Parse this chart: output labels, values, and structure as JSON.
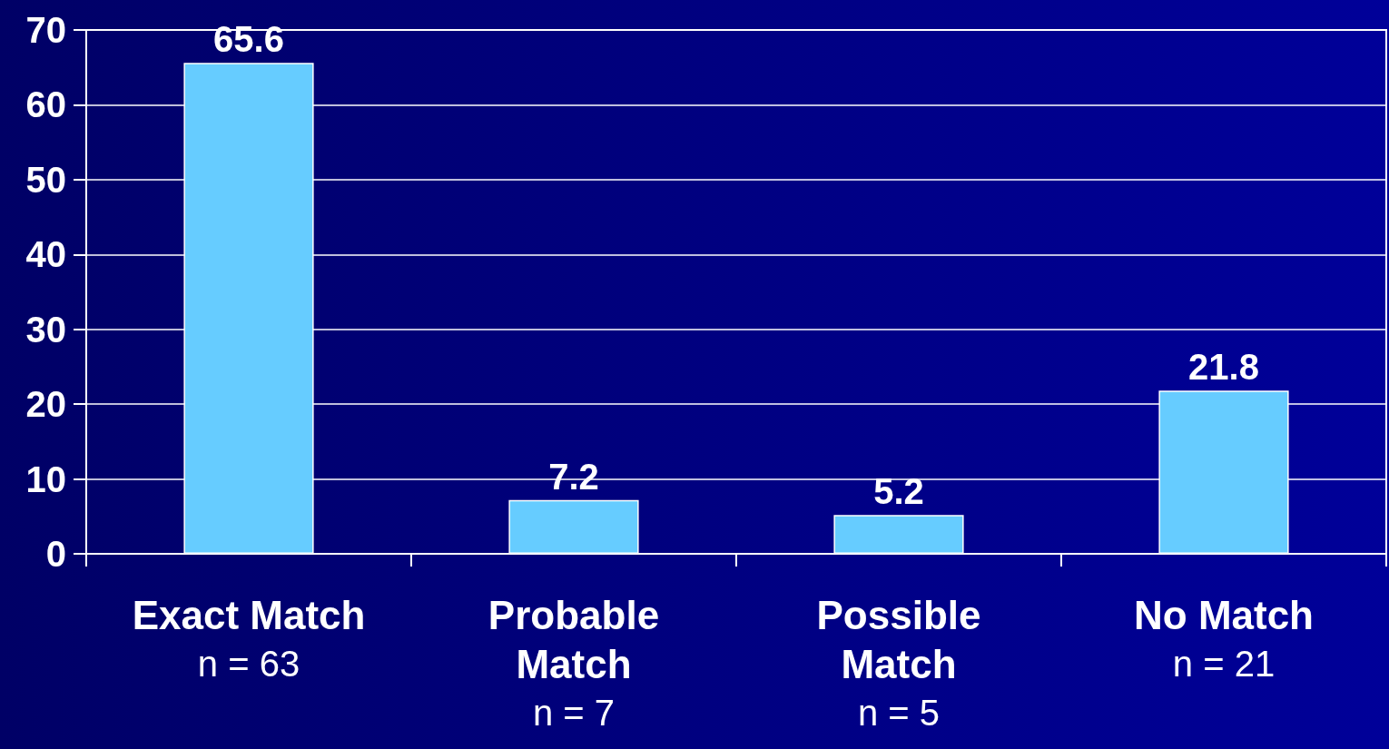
{
  "chart_data": {
    "type": "bar",
    "categories": [
      "Exact Match\nn = 63",
      "Probable\nMatch\nn = 7",
      "Possible\nMatch\nn = 5",
      "No Match\nn = 21"
    ],
    "values": [
      65.6,
      7.2,
      5.2,
      21.8
    ],
    "color": "#66ccff",
    "ylim": [
      0,
      70
    ],
    "yticks": [
      0,
      10,
      20,
      30,
      40,
      50,
      60,
      70
    ],
    "grid": "y",
    "data_labels": true
  }
}
